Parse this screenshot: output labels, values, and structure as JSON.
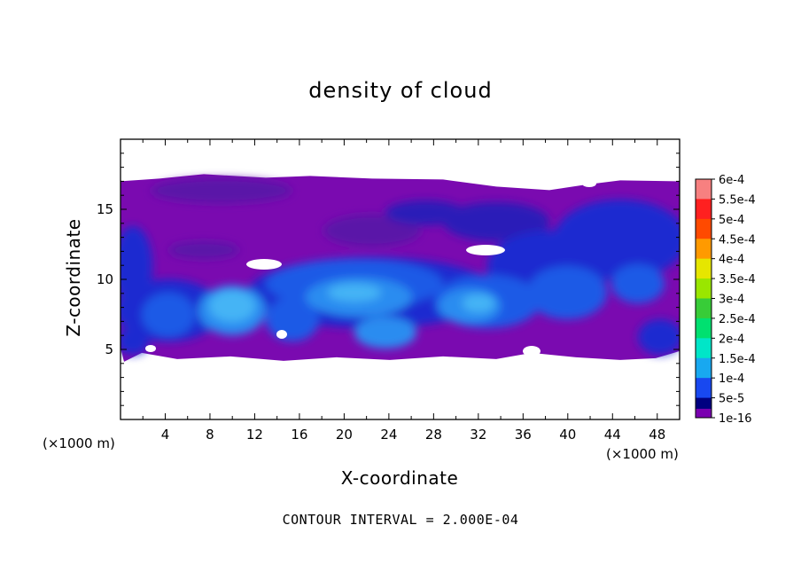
{
  "chart_data": {
    "type": "heatmap",
    "title": "density of cloud",
    "xlabel": "X-coordinate",
    "ylabel": "Z-coordinate",
    "x_unit_left": "(×1000 m)",
    "x_unit_right": "(×1000 m)",
    "xlim": [
      0,
      50
    ],
    "ylim": [
      0,
      20
    ],
    "x_ticks": [
      4,
      8,
      12,
      16,
      20,
      24,
      28,
      32,
      36,
      40,
      44,
      48
    ],
    "y_ticks": [
      5,
      10,
      15
    ],
    "footer": "CONTOUR INTERVAL = 2.000E-04",
    "colorbar": {
      "labels": [
        "6e-4",
        "5.5e-4",
        "5e-4",
        "4.5e-4",
        "4e-4",
        "3.5e-4",
        "3e-4",
        "2.5e-4",
        "2e-4",
        "1.5e-4",
        "1e-4",
        "5e-5",
        "1e-16"
      ],
      "colors": [
        "#f78080",
        "#ff2020",
        "#ff4a00",
        "#ff9a00",
        "#e6e600",
        "#9ae600",
        "#38cc38",
        "#00e070",
        "#00e6c8",
        "#18a8f0",
        "#1848f0",
        "#000080",
        "#7a00b0"
      ]
    },
    "field_colors": {
      "background": "#7a0ab0",
      "purple_dark": "#5a18a8",
      "blue_dark": "#1a2ad0",
      "blue_mid": "#1f5ae6",
      "blue_light": "#2a8cf0",
      "cyan": "#45b4f5"
    },
    "cloud_layer": {
      "z_bottom": 4.5,
      "z_top": 17.0
    }
  }
}
